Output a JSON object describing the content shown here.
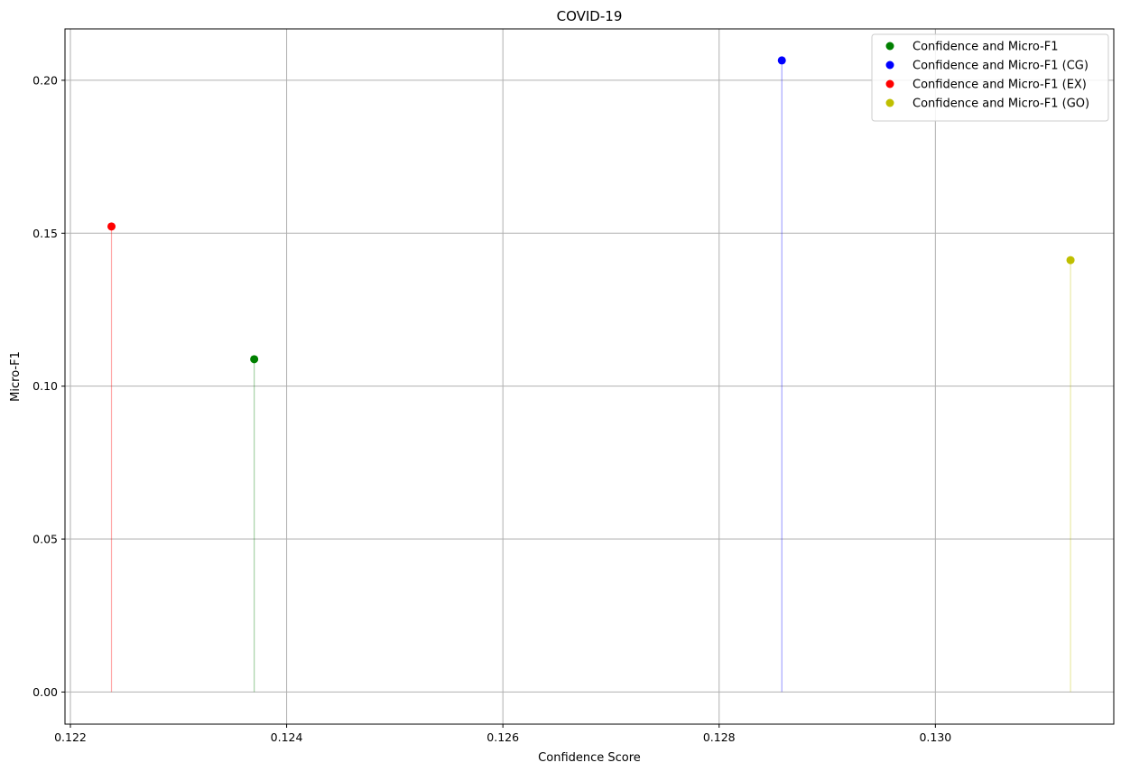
{
  "chart_data": {
    "type": "scatter",
    "title": "COVID-19",
    "xlabel": "Confidence Score",
    "ylabel": "Micro-F1",
    "xlim": [
      0.12195,
      0.13165
    ],
    "ylim": [
      -0.0105,
      0.2168
    ],
    "x_ticks": [
      0.122,
      0.124,
      0.126,
      0.128,
      0.13
    ],
    "x_tick_labels": [
      "0.122",
      "0.124",
      "0.126",
      "0.128",
      "0.130"
    ],
    "y_ticks": [
      0.0,
      0.05,
      0.1,
      0.15,
      0.2
    ],
    "y_tick_labels": [
      "0.00",
      "0.05",
      "0.10",
      "0.15",
      "0.20"
    ],
    "grid": true,
    "legend_position": "top-right",
    "stems": true,
    "series": [
      {
        "name": "Confidence and Micro-F1",
        "color": "#008000",
        "points": [
          {
            "x": 0.1237,
            "y": 0.1088
          }
        ]
      },
      {
        "name": "Confidence and Micro-F1 (CG)",
        "color": "#0000ff",
        "points": [
          {
            "x": 0.12858,
            "y": 0.2065
          }
        ]
      },
      {
        "name": "Confidence and Micro-F1 (EX)",
        "color": "#ff0000",
        "points": [
          {
            "x": 0.12238,
            "y": 0.1522
          }
        ]
      },
      {
        "name": "Confidence and Micro-F1 (GO)",
        "color": "#bfbf00",
        "points": [
          {
            "x": 0.13125,
            "y": 0.1412
          }
        ]
      }
    ]
  }
}
